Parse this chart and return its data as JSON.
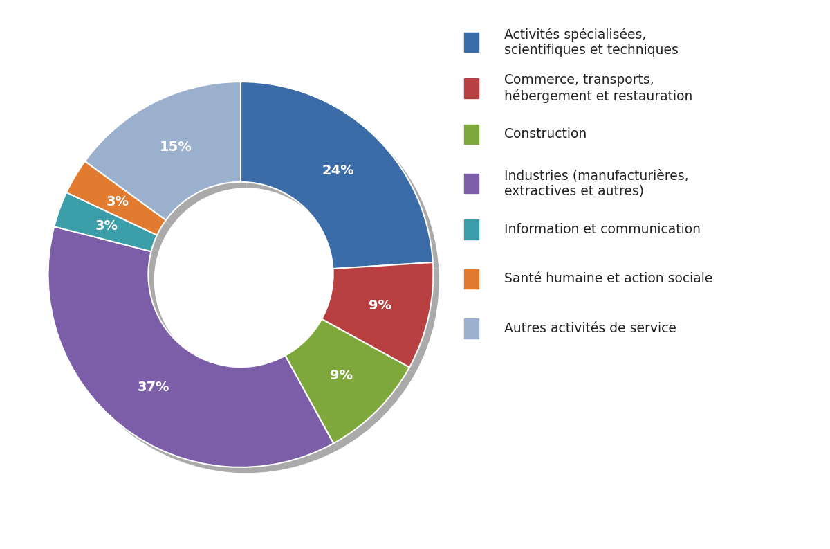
{
  "labels": [
    "Activités spécialisées,\nscientifiques et techniques",
    "Commerce, transports,\nhébergement et restauration",
    "Construction",
    "Industries (manufacturières,\nextractives et autres)",
    "Information et communication",
    "Santé humaine et action sociale",
    "Autres activités de service"
  ],
  "values": [
    24,
    9,
    9,
    37,
    3,
    3,
    15
  ],
  "colors": [
    "#3B6CA8",
    "#B94040",
    "#7EA83B",
    "#7B5EA7",
    "#3B9EA8",
    "#E07B30",
    "#9BB0CC"
  ],
  "pct_labels": [
    "24%",
    "9%",
    "9%",
    "37%",
    "3%",
    "3%",
    "15%"
  ],
  "legend_labels": [
    "Activités spécialisées,\nscientifiques et techniques",
    "Commerce, transports,\nhébergement et restauration",
    "Construction",
    "Industries (manufacturières,\nextractives et autres)",
    "Information et communication",
    "Santé humaine et action sociale",
    "Autres activités de service"
  ],
  "legend_spacing_after": [
    0,
    0,
    1,
    0,
    0,
    0,
    0
  ],
  "background_color": "#FFFFFF",
  "text_color": "#FFFFFF",
  "label_fontsize": 14,
  "legend_fontsize": 13.5,
  "donut_width": 0.52,
  "shadow_color": "#AAAAAA"
}
